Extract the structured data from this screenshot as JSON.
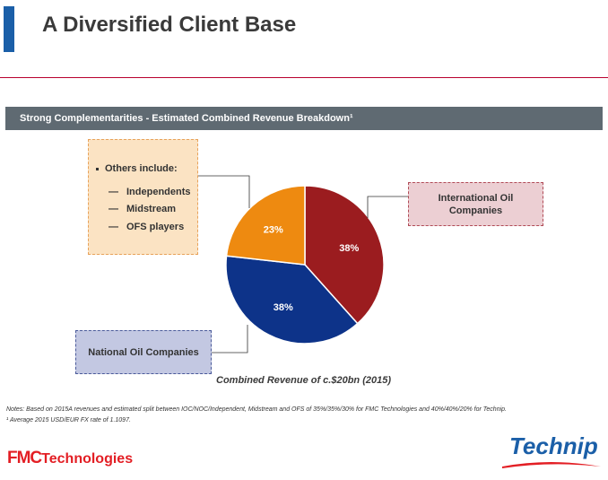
{
  "page": {
    "title": "A Diversified Client Base",
    "section_header": "Strong Complementarities - Estimated Combined Revenue Breakdown¹"
  },
  "colors": {
    "accent": "#1b5fa8",
    "rule": "#b8002e",
    "header_bg": "#5f6a72",
    "ioc": "#9b1c1f",
    "noc": "#0d3389",
    "others": "#ee8a10"
  },
  "callouts": {
    "others": {
      "heading": "Others include:",
      "items": [
        "Independents",
        "Midstream",
        "OFS players"
      ]
    },
    "ioc": "International Oil Companies",
    "noc": "National Oil Companies"
  },
  "chart_data": {
    "type": "pie",
    "categories": [
      "International Oil Companies",
      "National Oil Companies",
      "Others"
    ],
    "values": [
      38,
      38,
      23
    ],
    "labels": [
      "38%",
      "38%",
      "23%"
    ],
    "colors": [
      "#9b1c1f",
      "#0d3389",
      "#ee8a10"
    ],
    "caption": "Combined Revenue of c.$20bn (2015)"
  },
  "notes": {
    "line1": "Notes: Based on 2015A revenues and estimated split between IOC/NOC/Independent, Midstream and OFS of 35%/35%/30% for FMC Technologies and 40%/40%/20% for Technip.",
    "line2": "¹ Average 2015 USD/EUR FX rate of 1.1097."
  },
  "logos": {
    "fmc_prefix": "FMC",
    "fmc_suffix": "Technologies",
    "technip": "Technip"
  }
}
